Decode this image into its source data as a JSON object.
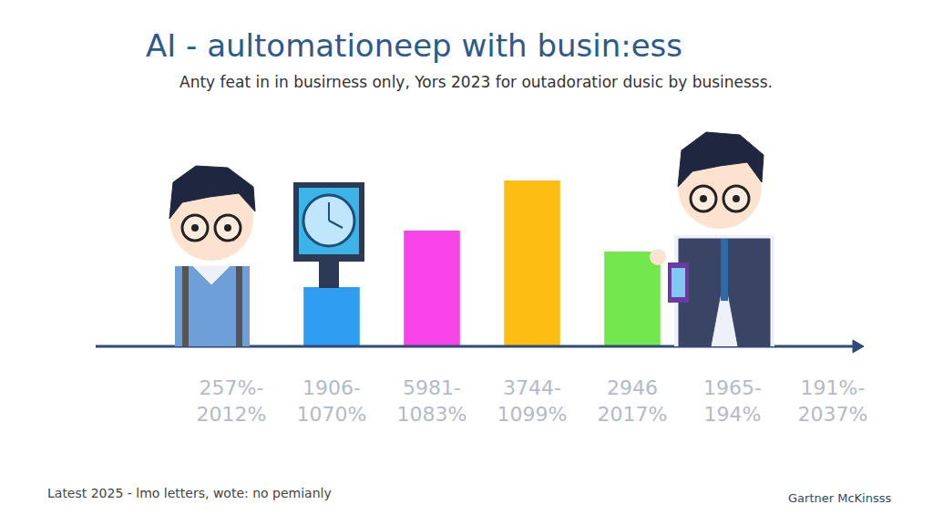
{
  "chart_data": {
    "type": "bar",
    "title": "AI - aultomationeep with busin:ess",
    "subtitle": "Anty feat in in busirness only, Yors 2023 for outadoratior dusic by businesss.",
    "categories": [
      "257%-\n2012%",
      "1906-\n1070%",
      "5981-\n1083%",
      "3744-\n1099%",
      "2946\n2017%",
      "1965-\n194%",
      "191%-\n2037%"
    ],
    "values": [
      null,
      65,
      127,
      182,
      104,
      null,
      null
    ],
    "colors": [
      null,
      "#2e9df2",
      "#f744e8",
      "#fdbd12",
      "#72e84e",
      null,
      null
    ],
    "ylim": [
      0,
      200
    ],
    "grid": false,
    "tick_labels": "x",
    "annotations": [
      "Latest 2025 - lmo letters, wote: no pemianly",
      "Gartner McKinsss"
    ]
  }
}
